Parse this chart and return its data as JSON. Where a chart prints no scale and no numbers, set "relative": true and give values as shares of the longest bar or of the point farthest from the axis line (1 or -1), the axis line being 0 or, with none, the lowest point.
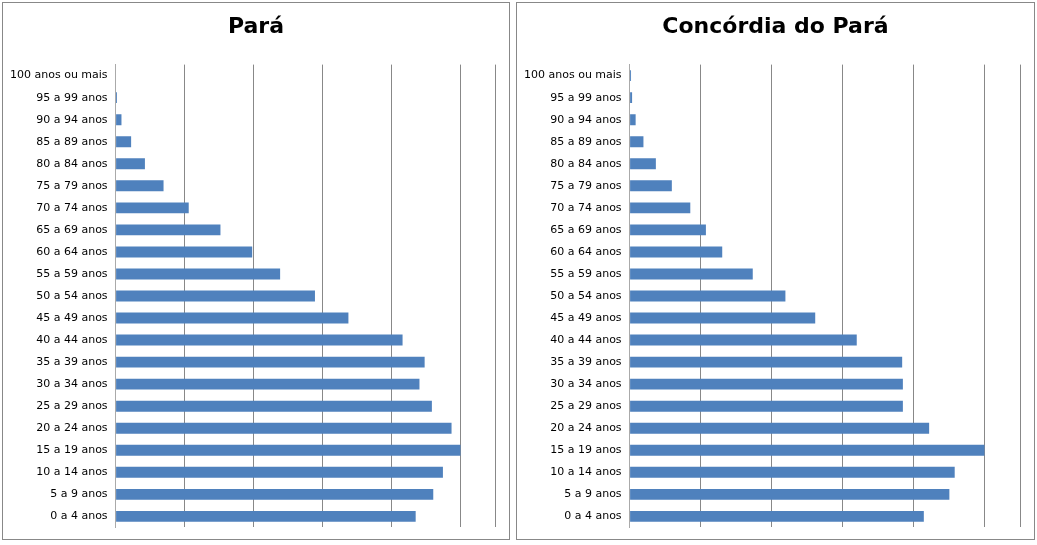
{
  "chart_data": [
    {
      "type": "bar",
      "title": "Pará",
      "orientation": "horizontal",
      "relative": true,
      "grid": "x",
      "categories": [
        "100 anos ou mais",
        "95 a 99 anos",
        "90 a 94 anos",
        "85 a 89 anos",
        "80 a 84 anos",
        "75 a 79 anos",
        "70 a 74 anos",
        "65 a 69 anos",
        "60 a 64 anos",
        "55 a 59 anos",
        "50 a 54 anos",
        "45 a 49 anos",
        "40 a 44 anos",
        "35 a 39 anos",
        "30 a 34 anos",
        "25 a 29 anos",
        "20 a 24 anos",
        "15 a 19 anos",
        "10 a 14 anos",
        "5 a 9 anos",
        "0 a 4 anos"
      ],
      "values": [
        0,
        0.004,
        0.017,
        0.045,
        0.085,
        0.139,
        0.212,
        0.304,
        0.396,
        0.477,
        0.578,
        0.675,
        0.832,
        0.896,
        0.881,
        0.917,
        0.974,
        1,
        0.949,
        0.921,
        0.87
      ],
      "color": "#4f81bd"
    },
    {
      "type": "bar",
      "title": "Concórdia do Pará",
      "orientation": "horizontal",
      "relative": true,
      "grid": "x",
      "categories": [
        "100 anos ou mais",
        "95 a 99 anos",
        "90 a 94 anos",
        "85 a 89 anos",
        "80 a 84 anos",
        "75 a 79 anos",
        "70 a 74 anos",
        "65 a 69 anos",
        "60 a 64 anos",
        "55 a 59 anos",
        "50 a 54 anos",
        "45 a 49 anos",
        "40 a 44 anos",
        "35 a 39 anos",
        "30 a 34 anos",
        "25 a 29 anos",
        "20 a 24 anos",
        "15 a 19 anos",
        "10 a 14 anos",
        "5 a 9 anos",
        "0 a 4 anos"
      ],
      "values": [
        0.004,
        0.007,
        0.017,
        0.039,
        0.074,
        0.119,
        0.171,
        0.215,
        0.261,
        0.347,
        0.439,
        0.523,
        0.64,
        0.768,
        0.77,
        0.77,
        0.844,
        1,
        0.916,
        0.901,
        0.829
      ],
      "color": "#4f81bd"
    }
  ]
}
